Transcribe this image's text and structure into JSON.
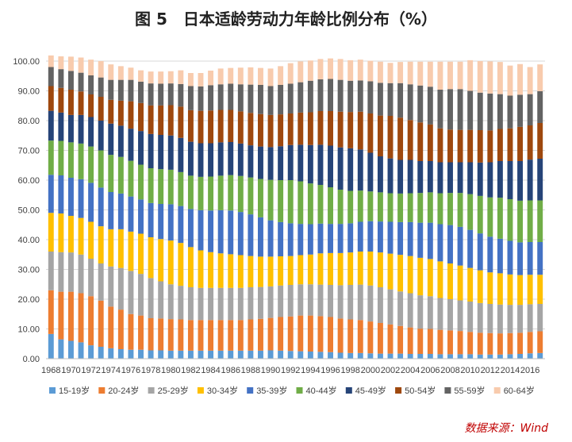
{
  "title": "图 5　日本适龄劳动力年龄比例分布（%）",
  "source": "数据来源：Wind",
  "chart_data": {
    "type": "bar",
    "stacked": true,
    "ylim": [
      0,
      100
    ],
    "yticks": [
      "0.00",
      "10.00",
      "20.00",
      "30.00",
      "40.00",
      "50.00",
      "60.00",
      "70.00",
      "80.00",
      "90.00",
      "100.00"
    ],
    "categories": [
      1968,
      1969,
      1970,
      1971,
      1972,
      1973,
      1974,
      1975,
      1976,
      1977,
      1978,
      1979,
      1980,
      1981,
      1982,
      1983,
      1984,
      1985,
      1986,
      1987,
      1988,
      1989,
      1990,
      1991,
      1992,
      1993,
      1994,
      1995,
      1996,
      1997,
      1998,
      1999,
      2000,
      2001,
      2002,
      2003,
      2004,
      2005,
      2006,
      2007,
      2008,
      2009,
      2010,
      2011,
      2012,
      2013,
      2014,
      2015,
      2016,
      2017
    ],
    "xtick_labels": [
      "1968",
      "1970",
      "1972",
      "1974",
      "1976",
      "1978",
      "1980",
      "1982",
      "1984",
      "1986",
      "1988",
      "1990",
      "1992",
      "1994",
      "1996",
      "1998",
      "2000",
      "2002",
      "2004",
      "2006",
      "2008",
      "2010",
      "2012",
      "2014",
      "2016"
    ],
    "legend_position": "bottom",
    "series": [
      {
        "name": "15-19岁",
        "color": "#5B9BD5",
        "values": [
          8.3,
          6.5,
          6.0,
          5.5,
          4.5,
          4.0,
          3.5,
          3.2,
          3.0,
          3.0,
          2.8,
          2.8,
          2.7,
          2.7,
          2.7,
          2.7,
          2.7,
          2.7,
          2.7,
          2.7,
          2.7,
          2.7,
          2.8,
          2.7,
          2.6,
          2.5,
          2.4,
          2.3,
          2.2,
          2.0,
          1.9,
          1.9,
          1.8,
          1.7,
          1.7,
          1.7,
          1.6,
          1.6,
          1.6,
          1.5,
          1.5,
          1.5,
          1.5,
          1.4,
          1.4,
          1.4,
          1.5,
          1.6,
          1.8,
          1.9
        ]
      },
      {
        "name": "20-24岁",
        "color": "#ED7D31",
        "values": [
          14.7,
          16.0,
          16.5,
          16.5,
          16.5,
          15.5,
          14.0,
          13.3,
          12.0,
          11.5,
          10.8,
          10.7,
          10.6,
          10.5,
          10.3,
          10.3,
          10.3,
          10.3,
          10.3,
          10.3,
          10.5,
          10.7,
          10.9,
          11.3,
          11.6,
          12.0,
          12.1,
          12.0,
          11.8,
          11.5,
          11.3,
          11.1,
          10.7,
          10.3,
          9.8,
          9.3,
          8.9,
          8.5,
          8.4,
          8.2,
          8.0,
          7.8,
          7.5,
          7.3,
          7.2,
          7.1,
          7.1,
          7.1,
          7.2,
          7.3
        ]
      },
      {
        "name": "25-29岁",
        "color": "#A5A5A5",
        "values": [
          13.0,
          13.3,
          13.2,
          13.0,
          12.6,
          12.5,
          13.5,
          14.0,
          14.5,
          14.0,
          13.5,
          12.5,
          11.7,
          11.3,
          11.0,
          10.8,
          10.8,
          10.8,
          10.8,
          10.8,
          10.8,
          10.7,
          10.6,
          10.6,
          10.6,
          10.5,
          10.5,
          10.6,
          10.8,
          11.2,
          11.6,
          11.9,
          12.1,
          12.0,
          11.8,
          11.6,
          11.5,
          11.2,
          11.0,
          10.7,
          10.5,
          10.3,
          10.2,
          10.0,
          9.8,
          9.7,
          9.5,
          9.4,
          9.3,
          9.2
        ]
      },
      {
        "name": "30-34岁",
        "color": "#FFC000",
        "values": [
          13.0,
          13.0,
          12.3,
          12.3,
          12.4,
          12.5,
          12.5,
          13.0,
          13.2,
          13.5,
          13.7,
          14.2,
          14.7,
          14.4,
          13.5,
          12.6,
          12.0,
          11.6,
          11.3,
          11.0,
          10.5,
          10.2,
          10.0,
          9.8,
          9.7,
          9.8,
          10.0,
          10.5,
          10.7,
          10.8,
          10.9,
          11.1,
          11.4,
          11.7,
          12.0,
          12.3,
          12.5,
          12.6,
          12.5,
          12.3,
          12.0,
          11.7,
          11.3,
          11.0,
          10.6,
          10.5,
          10.2,
          10.0,
          9.9,
          9.8
        ]
      },
      {
        "name": "35-39岁",
        "color": "#4472C4",
        "values": [
          12.8,
          12.8,
          12.8,
          13.0,
          13.1,
          13.0,
          12.5,
          12.0,
          11.8,
          11.5,
          11.5,
          11.8,
          12.2,
          12.4,
          12.8,
          13.5,
          14.0,
          14.5,
          14.7,
          14.5,
          14.0,
          13.2,
          12.2,
          11.5,
          11.0,
          10.5,
          10.2,
          10.0,
          9.8,
          9.8,
          9.8,
          10.0,
          10.2,
          10.4,
          10.7,
          11.0,
          11.4,
          11.8,
          12.2,
          12.5,
          12.9,
          13.0,
          12.8,
          12.4,
          12.0,
          11.6,
          11.3,
          11.0,
          11.0,
          11.0
        ]
      },
      {
        "name": "40-44岁",
        "color": "#70AD47",
        "values": [
          11.5,
          11.6,
          11.9,
          12.0,
          12.2,
          12.5,
          12.5,
          12.3,
          12.0,
          11.7,
          11.7,
          11.7,
          11.6,
          11.4,
          11.2,
          11.2,
          11.4,
          11.6,
          11.9,
          12.1,
          12.4,
          12.9,
          13.6,
          14.1,
          14.5,
          14.3,
          13.7,
          13.0,
          12.3,
          11.5,
          10.9,
          10.5,
          10.0,
          9.8,
          9.6,
          9.6,
          9.7,
          10.0,
          10.2,
          10.4,
          10.8,
          11.4,
          12.0,
          12.6,
          13.2,
          13.8,
          14.0,
          14.0,
          14.0,
          14.0
        ]
      },
      {
        "name": "45-49岁",
        "color": "#264478",
        "values": [
          10.0,
          9.5,
          9.2,
          9.6,
          9.9,
          10.0,
          10.5,
          10.5,
          10.8,
          11.3,
          11.5,
          11.5,
          11.5,
          11.5,
          11.4,
          11.3,
          11.2,
          11.2,
          11.1,
          10.9,
          10.8,
          10.9,
          11.0,
          11.4,
          11.8,
          12.3,
          12.9,
          13.5,
          14.0,
          14.2,
          14.3,
          13.8,
          13.0,
          12.1,
          11.7,
          11.3,
          11.2,
          10.7,
          10.5,
          10.4,
          10.3,
          10.3,
          10.7,
          11.2,
          11.8,
          12.3,
          12.8,
          13.3,
          13.7,
          14.0
        ]
      },
      {
        "name": "50-54岁",
        "color": "#9E480E",
        "values": [
          8.3,
          8.3,
          8.5,
          7.9,
          7.6,
          8.0,
          8.0,
          8.4,
          9.2,
          9.4,
          9.6,
          9.9,
          10.2,
          10.5,
          10.6,
          10.9,
          11.0,
          10.9,
          10.8,
          10.8,
          10.9,
          10.9,
          10.8,
          10.7,
          10.6,
          10.8,
          11.0,
          11.3,
          11.6,
          12.0,
          12.2,
          12.7,
          13.2,
          13.7,
          14.3,
          14.2,
          13.4,
          13.0,
          12.3,
          11.4,
          11.0,
          10.9,
          10.9,
          10.9,
          10.7,
          10.8,
          11.0,
          11.5,
          11.5,
          12.0
        ]
      },
      {
        "name": "55-59岁",
        "color": "#636363",
        "values": [
          6.4,
          6.3,
          6.3,
          6.3,
          6.4,
          6.5,
          6.7,
          7.0,
          7.2,
          7.2,
          7.4,
          7.3,
          7.3,
          7.6,
          8.1,
          8.2,
          8.5,
          8.6,
          8.8,
          9.1,
          9.5,
          9.8,
          9.7,
          9.9,
          10.0,
          10.2,
          10.6,
          10.7,
          10.8,
          10.7,
          10.5,
          10.5,
          10.8,
          11.0,
          11.0,
          11.6,
          12.0,
          12.4,
          12.7,
          13.0,
          13.6,
          13.7,
          13.1,
          12.6,
          12.4,
          11.7,
          11.0,
          10.8,
          10.5,
          10.7
        ]
      },
      {
        "name": "60-64岁",
        "color": "#F8CBAD",
        "values": [
          3.9,
          4.3,
          4.8,
          5.1,
          5.3,
          5.5,
          5.2,
          4.6,
          4.1,
          3.8,
          4.0,
          4.1,
          4.1,
          4.6,
          4.4,
          4.5,
          4.9,
          5.3,
          5.3,
          5.6,
          5.8,
          5.7,
          5.9,
          6.3,
          6.9,
          7.0,
          6.8,
          6.8,
          6.9,
          7.0,
          6.9,
          7.0,
          6.9,
          7.1,
          6.8,
          7.1,
          7.6,
          8.0,
          8.4,
          9.4,
          9.2,
          9.2,
          10.3,
          10.6,
          10.8,
          10.8,
          10.1,
          10.3,
          9.1,
          9.0
        ]
      }
    ]
  }
}
